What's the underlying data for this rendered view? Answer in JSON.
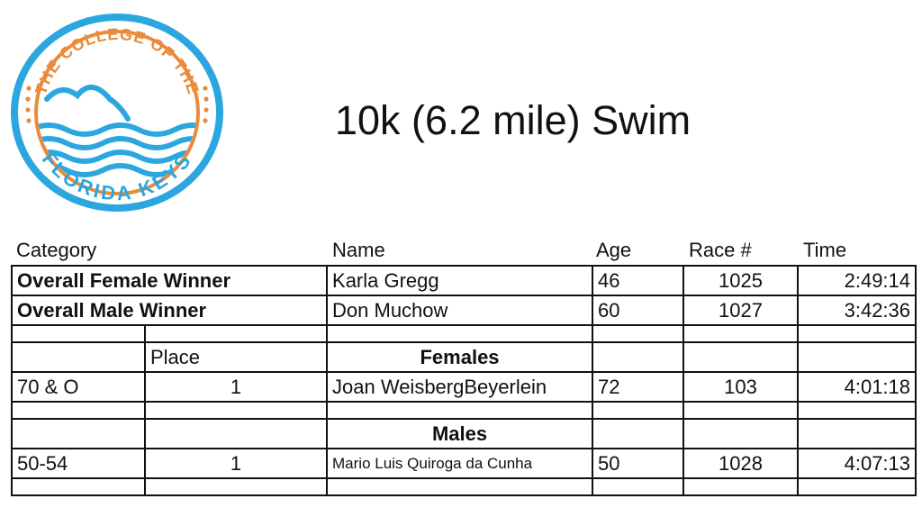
{
  "logo": {
    "top_text": "THE COLLEGE OF THE",
    "bottom_text": "FLORIDA KEYS",
    "colors": {
      "orange": "#ea8a3a",
      "blue": "#2ba6de"
    }
  },
  "title": "10k (6.2 mile) Swim",
  "headers": {
    "category": "Category",
    "name": "Name",
    "age": "Age",
    "race": "Race #",
    "time": "Time"
  },
  "overall": [
    {
      "category": "Overall Female Winner",
      "name": "Karla Gregg",
      "age": "46",
      "race": "1025",
      "time": "2:49:14"
    },
    {
      "category": "Overall Male Winner",
      "name": "Don Muchow",
      "age": "60",
      "race": "1027",
      "time": "3:42:36"
    }
  ],
  "place_label": "Place",
  "females": {
    "heading": "Females",
    "rows": [
      {
        "category": "70 & O",
        "place": "1",
        "name": "Joan WeisbergBeyerlein",
        "age": "72",
        "race": "103",
        "time": "4:01:18"
      }
    ]
  },
  "males": {
    "heading": "Males",
    "rows": [
      {
        "category": "50-54",
        "place": "1",
        "name": "Mario Luis Quiroga da Cunha",
        "age": "50",
        "race": "1028",
        "time": "4:07:13"
      }
    ]
  }
}
